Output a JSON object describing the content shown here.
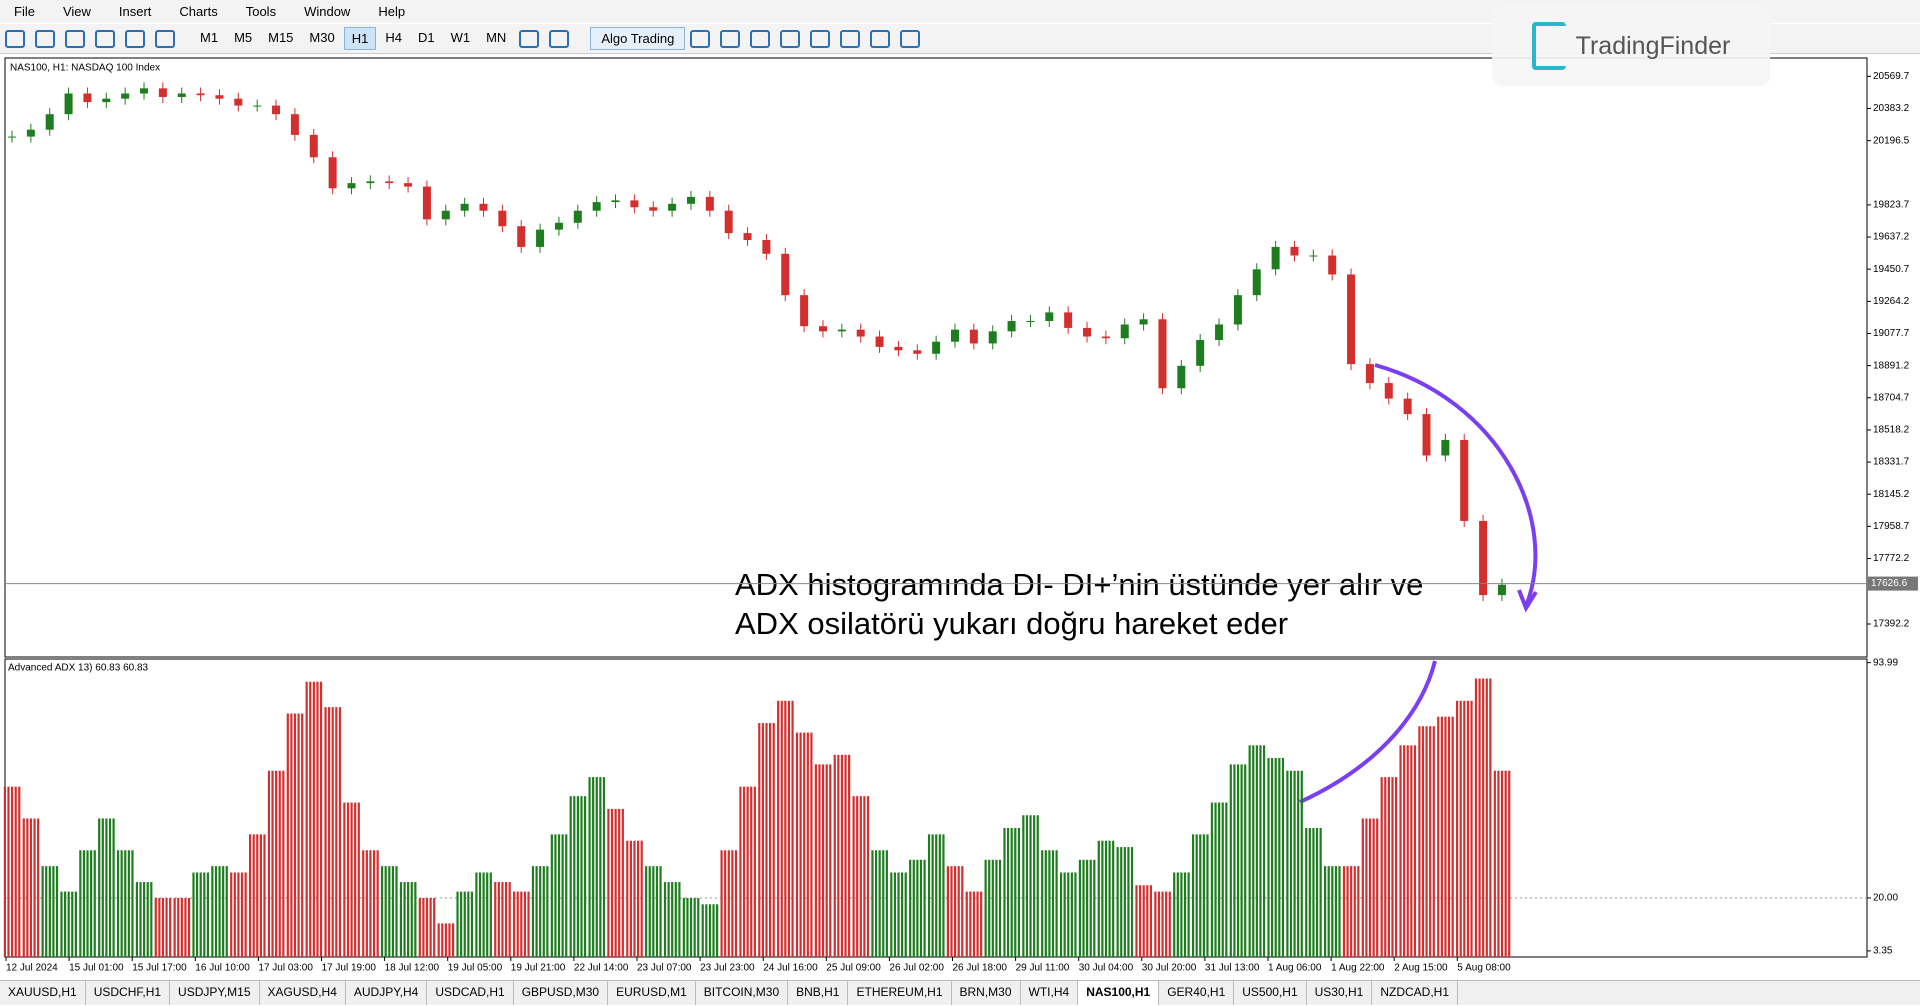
{
  "menu": [
    "File",
    "View",
    "Insert",
    "Charts",
    "Tools",
    "Window",
    "Help"
  ],
  "timeframes": [
    "M1",
    "M5",
    "M15",
    "M30",
    "H1",
    "H4",
    "D1",
    "W1",
    "MN"
  ],
  "active_timeframe": "H1",
  "algo_button": "Algo Trading",
  "logo": "TradingFinder",
  "annotation": [
    "ADX histogramında DI- DI+’nin üstünde yer alır ve",
    "ADX osilatörü yukarı doğru hareket eder"
  ],
  "xtick_labels": [
    "12 Jul 2024",
    "15 Jul 01:00",
    "15 Jul 17:00",
    "16 Jul 10:00",
    "17 Jul 03:00",
    "17 Jul 19:00",
    "18 Jul 12:00",
    "19 Jul 05:00",
    "19 Jul 21:00",
    "22 Jul 14:00",
    "23 Jul 07:00",
    "23 Jul 23:00",
    "24 Jul 16:00",
    "25 Jul 09:00",
    "26 Jul 02:00",
    "26 Jul 18:00",
    "29 Jul 11:00",
    "30 Jul 04:00",
    "30 Jul 20:00",
    "31 Jul 13:00",
    "1 Aug 06:00",
    "1 Aug 22:00",
    "2 Aug 15:00",
    "5 Aug 08:00"
  ],
  "tabs": [
    "XAUUSD,H1",
    "USDCHF,H1",
    "USDJPY,M15",
    "XAGUSD,H4",
    "AUDJPY,H4",
    "USDCAD,H1",
    "GBPUSD,M30",
    "EURUSD,M1",
    "BITCOIN,M30",
    "BNB,H1",
    "ETHEREUM,H1",
    "BRN,M30",
    "WTI,H4",
    "NAS100,H1",
    "GER40,H1",
    "US500,H1",
    "US30,H1",
    "NZDCAD,H1"
  ],
  "active_tab": "NAS100,H1",
  "chart_data": [
    {
      "type": "candlestick",
      "title": "NAS100, H1:  NASDAQ 100 Index",
      "up_color": "#1e7d1e",
      "down_color": "#d32f2f",
      "values": [
        20220,
        20260,
        20350,
        20470,
        20420,
        20440,
        20470,
        20500,
        20450,
        20470,
        20460,
        20440,
        20400,
        20400,
        20350,
        20230,
        20100,
        19920,
        19950,
        19960,
        19950,
        19930,
        19740,
        19790,
        19830,
        19790,
        19700,
        19580,
        19680,
        19720,
        19790,
        19840,
        19850,
        19810,
        19790,
        19830,
        19870,
        19790,
        19660,
        19620,
        19540,
        19300,
        19120,
        19090,
        19100,
        19060,
        19000,
        18980,
        18960,
        19030,
        19100,
        19020,
        19090,
        19150,
        19150,
        19200,
        19110,
        19060,
        19050,
        19130,
        19160,
        18760,
        18890,
        19040,
        19130,
        19300,
        19450,
        19580,
        19530,
        19530,
        19420,
        18900,
        18790,
        18700,
        18610,
        18370,
        18460,
        17990,
        17560,
        17620
      ],
      "ylim": [
        17200.7,
        20676
      ],
      "yticks": [
        20569.7,
        20383.2,
        20196.5,
        19823.7,
        19637.2,
        19450.7,
        19264.2,
        19077.7,
        18891.2,
        18704.7,
        18518.2,
        18331.7,
        18145.2,
        17958.7,
        17772.2,
        17392.2
      ],
      "current_price": {
        "value": 17626.6,
        "label": "17626.6"
      }
    },
    {
      "type": "bar",
      "title": "Advanced ADX 13) 60.83 60.83",
      "up_color": "#1e7d1e",
      "down_color": "#d32f2f",
      "values": [
        55,
        45,
        30,
        22,
        35,
        45,
        35,
        25,
        20,
        20,
        28,
        30,
        28,
        40,
        60,
        78,
        88,
        80,
        50,
        35,
        30,
        25,
        20,
        12,
        22,
        28,
        25,
        22,
        30,
        40,
        52,
        58,
        48,
        38,
        30,
        25,
        20,
        18,
        35,
        55,
        75,
        82,
        72,
        62,
        65,
        52,
        35,
        28,
        32,
        40,
        30,
        22,
        32,
        42,
        46,
        35,
        28,
        32,
        38,
        36,
        24,
        22,
        28,
        40,
        50,
        62,
        68,
        64,
        60,
        42,
        30,
        30,
        45,
        58,
        68,
        74,
        77,
        82,
        89,
        60
      ],
      "trend": [
        "down",
        "down",
        "up",
        "up",
        "up",
        "up",
        "up",
        "up",
        "down",
        "down",
        "up",
        "up",
        "down",
        "down",
        "down",
        "down",
        "down",
        "down",
        "down",
        "down",
        "up",
        "up",
        "down",
        "down",
        "up",
        "up",
        "down",
        "down",
        "up",
        "up",
        "up",
        "up",
        "down",
        "down",
        "up",
        "up",
        "up",
        "up",
        "down",
        "down",
        "down",
        "down",
        "down",
        "down",
        "down",
        "down",
        "up",
        "up",
        "up",
        "up",
        "down",
        "down",
        "up",
        "up",
        "up",
        "up",
        "up",
        "up",
        "up",
        "up",
        "down",
        "down",
        "up",
        "up",
        "up",
        "up",
        "up",
        "up",
        "up",
        "up",
        "up",
        "down",
        "down",
        "down",
        "down",
        "down",
        "down",
        "down",
        "down",
        "down"
      ],
      "ylim": [
        1.43,
        95.14
      ],
      "yticks": [
        93.99,
        {
          "value": 20,
          "label": "20.00"
        },
        3.35
      ]
    }
  ]
}
